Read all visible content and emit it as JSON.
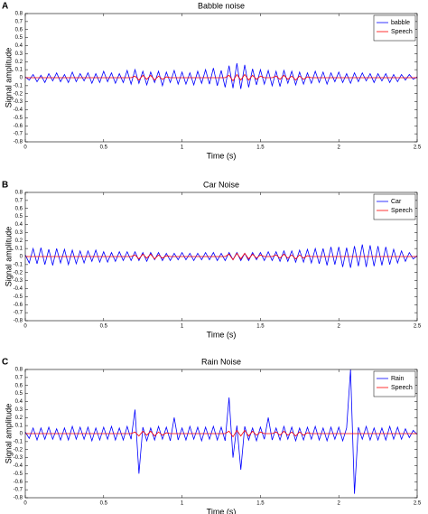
{
  "chart_data": [
    {
      "type": "line",
      "panel_label": "A",
      "title": "Babble noise",
      "xlabel": "Time (s)",
      "ylabel": "Signal amplitude",
      "legend": "upper right",
      "xlim": [
        0,
        2.5
      ],
      "ylim": [
        -0.8,
        0.8
      ],
      "xticks": [
        0,
        0.5,
        1,
        1.5,
        2,
        2.5
      ],
      "yticks": [
        -0.8,
        -0.7,
        -0.6,
        -0.5,
        -0.4,
        -0.3,
        -0.2,
        -0.1,
        0,
        0.1,
        0.2,
        0.3,
        0.4,
        0.5,
        0.6,
        0.7,
        0.8
      ],
      "x": [
        0,
        0.025,
        0.05,
        0.075,
        0.1,
        0.125,
        0.15,
        0.175,
        0.2,
        0.225,
        0.25,
        0.275,
        0.3,
        0.325,
        0.35,
        0.375,
        0.4,
        0.425,
        0.45,
        0.475,
        0.5,
        0.525,
        0.55,
        0.575,
        0.6,
        0.625,
        0.65,
        0.675,
        0.7,
        0.725,
        0.75,
        0.775,
        0.8,
        0.825,
        0.85,
        0.875,
        0.9,
        0.925,
        0.95,
        0.975,
        1,
        1.025,
        1.05,
        1.075,
        1.1,
        1.125,
        1.15,
        1.175,
        1.2,
        1.225,
        1.25,
        1.275,
        1.3,
        1.325,
        1.35,
        1.375,
        1.4,
        1.425,
        1.45,
        1.475,
        1.5,
        1.525,
        1.55,
        1.575,
        1.6,
        1.625,
        1.65,
        1.675,
        1.7,
        1.725,
        1.75,
        1.775,
        1.8,
        1.825,
        1.85,
        1.875,
        1.9,
        1.925,
        1.95,
        1.975,
        2,
        2.025,
        2.05,
        2.075,
        2.1,
        2.125,
        2.15,
        2.175,
        2.2,
        2.225,
        2.25,
        2.275,
        2.3,
        2.325,
        2.35,
        2.375,
        2.4,
        2.425,
        2.45,
        2.475,
        2.5
      ],
      "series": [
        {
          "name": "babble",
          "color": "#0000ff",
          "values": [
            0.01,
            -0.03,
            0.04,
            -0.05,
            0.03,
            -0.06,
            0.05,
            -0.04,
            0.06,
            -0.05,
            0.04,
            -0.06,
            0.07,
            -0.05,
            0.05,
            -0.04,
            0.06,
            -0.07,
            0.05,
            -0.06,
            0.08,
            -0.05,
            0.06,
            -0.07,
            0.05,
            -0.06,
            0.09,
            -0.08,
            0.1,
            -0.07,
            0.08,
            -0.09,
            0.07,
            -0.06,
            0.08,
            -0.1,
            0.07,
            -0.06,
            0.09,
            -0.08,
            0.07,
            -0.08,
            0.06,
            -0.09,
            0.08,
            -0.07,
            0.1,
            -0.08,
            0.12,
            -0.1,
            0.09,
            -0.12,
            0.15,
            -0.13,
            0.18,
            -0.14,
            0.16,
            -0.12,
            0.11,
            -0.09,
            0.1,
            -0.08,
            0.09,
            -0.1,
            0.08,
            -0.11,
            0.09,
            -0.07,
            0.08,
            -0.09,
            0.07,
            -0.08,
            0.06,
            -0.07,
            0.08,
            -0.06,
            0.07,
            -0.08,
            0.06,
            -0.05,
            0.07,
            -0.06,
            0.05,
            -0.07,
            0.06,
            -0.05,
            0.06,
            -0.04,
            0.05,
            -0.06,
            0.05,
            -0.04,
            0.05,
            -0.06,
            0.04,
            -0.05,
            0.04,
            -0.03,
            0.04,
            -0.02,
            0.01
          ]
        },
        {
          "name": "Speech",
          "color": "#ff0000",
          "values": [
            0,
            0,
            0,
            0,
            0,
            0,
            0,
            0,
            0,
            0,
            0,
            0,
            0,
            0,
            0,
            0,
            0,
            0,
            0,
            0,
            0,
            0,
            0,
            0,
            0,
            0,
            0,
            0,
            0.02,
            -0.03,
            0.03,
            -0.02,
            0.03,
            -0.03,
            0.02,
            -0.02,
            0.01,
            0,
            0,
            0,
            0,
            0,
            0,
            0,
            0,
            0,
            0,
            0,
            0,
            0,
            0,
            0,
            0.03,
            -0.04,
            0.04,
            -0.03,
            0.04,
            -0.03,
            0.03,
            -0.02,
            0.02,
            0,
            0,
            0,
            0.02,
            -0.02,
            0.03,
            -0.02,
            0.02,
            -0.03,
            0.02,
            -0.02,
            0.01,
            0,
            0,
            0,
            0,
            0,
            0,
            0,
            0,
            0,
            0,
            0,
            0,
            0,
            0,
            0,
            0,
            0,
            0,
            0,
            0,
            0,
            0,
            0,
            0,
            0,
            0,
            0,
            0
          ]
        }
      ]
    },
    {
      "type": "line",
      "panel_label": "B",
      "title": "Car Noise",
      "xlabel": "Time (s)",
      "ylabel": "Signal amplitude",
      "legend": "upper right",
      "xlim": [
        0,
        2.5
      ],
      "ylim": [
        -0.8,
        0.8
      ],
      "xticks": [
        0,
        0.5,
        1,
        1.5,
        2,
        2.5
      ],
      "yticks": [
        -0.8,
        -0.7,
        -0.6,
        -0.5,
        -0.4,
        -0.3,
        -0.2,
        -0.1,
        0,
        0.1,
        0.2,
        0.3,
        0.4,
        0.5,
        0.6,
        0.7,
        0.8
      ],
      "x": [
        0,
        0.025,
        0.05,
        0.075,
        0.1,
        0.125,
        0.15,
        0.175,
        0.2,
        0.225,
        0.25,
        0.275,
        0.3,
        0.325,
        0.35,
        0.375,
        0.4,
        0.425,
        0.45,
        0.475,
        0.5,
        0.525,
        0.55,
        0.575,
        0.6,
        0.625,
        0.65,
        0.675,
        0.7,
        0.725,
        0.75,
        0.775,
        0.8,
        0.825,
        0.85,
        0.875,
        0.9,
        0.925,
        0.95,
        0.975,
        1,
        1.025,
        1.05,
        1.075,
        1.1,
        1.125,
        1.15,
        1.175,
        1.2,
        1.225,
        1.25,
        1.275,
        1.3,
        1.325,
        1.35,
        1.375,
        1.4,
        1.425,
        1.45,
        1.475,
        1.5,
        1.525,
        1.55,
        1.575,
        1.6,
        1.625,
        1.65,
        1.675,
        1.7,
        1.725,
        1.75,
        1.775,
        1.8,
        1.825,
        1.85,
        1.875,
        1.9,
        1.925,
        1.95,
        1.975,
        2,
        2.025,
        2.05,
        2.075,
        2.1,
        2.125,
        2.15,
        2.175,
        2.2,
        2.225,
        2.25,
        2.275,
        2.3,
        2.325,
        2.35,
        2.375,
        2.4,
        2.425,
        2.45,
        2.475,
        2.5
      ],
      "series": [
        {
          "name": "Car",
          "color": "#0000ff",
          "values": [
            0.02,
            -0.08,
            0.1,
            -0.09,
            0.11,
            -0.1,
            0.09,
            -0.11,
            0.1,
            -0.08,
            0.09,
            -0.1,
            0.08,
            -0.09,
            0.07,
            -0.08,
            0.07,
            -0.06,
            0.08,
            -0.07,
            0.06,
            -0.07,
            0.05,
            -0.06,
            0.06,
            -0.05,
            0.06,
            -0.05,
            0.06,
            -0.05,
            0.05,
            -0.06,
            0.05,
            -0.04,
            0.05,
            -0.05,
            0.04,
            -0.05,
            0.04,
            -0.04,
            0.05,
            -0.04,
            0.04,
            -0.05,
            0.04,
            -0.04,
            0.05,
            -0.04,
            0.05,
            -0.05,
            0.04,
            -0.05,
            0.05,
            -0.04,
            0.05,
            -0.05,
            0.04,
            -0.05,
            0.05,
            -0.04,
            0.05,
            -0.05,
            0.06,
            -0.05,
            0.06,
            -0.06,
            0.07,
            -0.06,
            0.07,
            -0.07,
            0.08,
            -0.07,
            0.09,
            -0.08,
            0.1,
            -0.09,
            0.1,
            -0.11,
            0.12,
            -0.1,
            0.12,
            -0.13,
            0.11,
            -0.14,
            0.13,
            -0.12,
            0.15,
            -0.13,
            0.14,
            -0.12,
            0.13,
            -0.11,
            0.12,
            -0.1,
            0.09,
            -0.08,
            0.07,
            -0.06,
            0.05,
            -0.03,
            0.01
          ]
        },
        {
          "name": "Speech",
          "color": "#ff0000",
          "values": [
            0,
            0,
            0,
            0,
            0,
            0,
            0,
            0,
            0,
            0,
            0,
            0,
            0,
            0,
            0,
            0,
            0,
            0,
            0,
            0,
            0,
            0,
            0,
            0,
            0,
            0,
            0,
            0,
            0.02,
            -0.03,
            0.03,
            -0.02,
            0.03,
            -0.03,
            0.02,
            -0.02,
            0.01,
            0,
            0,
            0,
            0,
            0,
            0,
            0,
            0,
            0,
            0,
            0,
            0,
            0,
            0,
            0,
            0.03,
            -0.04,
            0.04,
            -0.03,
            0.04,
            -0.03,
            0.03,
            -0.02,
            0.02,
            0,
            0,
            0,
            0.02,
            -0.02,
            0.03,
            -0.02,
            0.02,
            -0.03,
            0.02,
            -0.02,
            0.01,
            0,
            0,
            0,
            0,
            0,
            0,
            0,
            0,
            0,
            0,
            0,
            0,
            0,
            0,
            0,
            0,
            0,
            0,
            0,
            0,
            0,
            0,
            0,
            0,
            0,
            0,
            0,
            0
          ]
        }
      ]
    },
    {
      "type": "line",
      "panel_label": "C",
      "title": "Rain Noise",
      "xlabel": "Time (s)",
      "ylabel": "Signal amplitude",
      "legend": "upper right",
      "xlim": [
        0,
        2.5
      ],
      "ylim": [
        -0.8,
        0.8
      ],
      "xticks": [
        0,
        0.5,
        1,
        1.5,
        2,
        2.5
      ],
      "yticks": [
        -0.8,
        -0.7,
        -0.6,
        -0.5,
        -0.4,
        -0.3,
        -0.2,
        -0.1,
        0,
        0.1,
        0.2,
        0.3,
        0.4,
        0.5,
        0.6,
        0.7,
        0.8
      ],
      "x": [
        0,
        0.025,
        0.05,
        0.075,
        0.1,
        0.125,
        0.15,
        0.175,
        0.2,
        0.225,
        0.25,
        0.275,
        0.3,
        0.325,
        0.35,
        0.375,
        0.4,
        0.425,
        0.45,
        0.475,
        0.5,
        0.525,
        0.55,
        0.575,
        0.6,
        0.625,
        0.65,
        0.675,
        0.7,
        0.725,
        0.75,
        0.775,
        0.8,
        0.825,
        0.85,
        0.875,
        0.9,
        0.925,
        0.95,
        0.975,
        1,
        1.025,
        1.05,
        1.075,
        1.1,
        1.125,
        1.15,
        1.175,
        1.2,
        1.225,
        1.25,
        1.275,
        1.3,
        1.325,
        1.35,
        1.375,
        1.4,
        1.425,
        1.45,
        1.475,
        1.5,
        1.525,
        1.55,
        1.575,
        1.6,
        1.625,
        1.65,
        1.675,
        1.7,
        1.725,
        1.75,
        1.775,
        1.8,
        1.825,
        1.85,
        1.875,
        1.9,
        1.925,
        1.95,
        1.975,
        2,
        2.025,
        2.05,
        2.075,
        2.1,
        2.125,
        2.15,
        2.175,
        2.2,
        2.225,
        2.25,
        2.275,
        2.3,
        2.325,
        2.35,
        2.375,
        2.4,
        2.425,
        2.45,
        2.475,
        2.5
      ],
      "series": [
        {
          "name": "Rain",
          "color": "#0000ff",
          "values": [
            0.02,
            -0.06,
            0.07,
            -0.08,
            0.07,
            -0.07,
            0.08,
            -0.07,
            0.06,
            -0.08,
            0.07,
            -0.08,
            0.09,
            -0.07,
            0.08,
            -0.07,
            0.08,
            -0.09,
            0.07,
            -0.08,
            0.08,
            -0.07,
            0.09,
            -0.08,
            0.07,
            -0.08,
            0.09,
            -0.07,
            0.3,
            -0.5,
            0.08,
            -0.09,
            0.07,
            -0.08,
            0.09,
            -0.07,
            0.08,
            -0.09,
            0.2,
            -0.08,
            0.07,
            -0.08,
            0.09,
            -0.07,
            0.08,
            -0.09,
            0.08,
            -0.07,
            0.09,
            -0.08,
            0.08,
            -0.09,
            0.45,
            -0.3,
            0.1,
            -0.45,
            0.09,
            -0.08,
            0.07,
            -0.09,
            0.08,
            -0.07,
            0.2,
            -0.08,
            0.07,
            -0.08,
            0.09,
            -0.07,
            0.08,
            -0.09,
            0.07,
            -0.08,
            0.08,
            -0.07,
            0.09,
            -0.08,
            0.07,
            -0.09,
            0.08,
            -0.07,
            0.08,
            -0.09,
            0.07,
            0.8,
            -0.75,
            0.08,
            -0.07,
            0.09,
            -0.08,
            0.07,
            -0.08,
            0.07,
            -0.08,
            0.09,
            -0.07,
            0.08,
            -0.07,
            0.06,
            -0.05,
            0.04,
            -0.01
          ]
        },
        {
          "name": "Speech",
          "color": "#ff0000",
          "values": [
            0,
            0,
            0,
            0,
            0,
            0,
            0,
            0,
            0,
            0,
            0,
            0,
            0,
            0,
            0,
            0,
            0,
            0,
            0,
            0,
            0,
            0,
            0,
            0,
            0,
            0,
            0,
            0,
            0.02,
            -0.03,
            0.03,
            -0.02,
            0.03,
            -0.03,
            0.02,
            -0.02,
            0.01,
            0,
            0,
            0,
            0,
            0,
            0,
            0,
            0,
            0,
            0,
            0,
            0,
            0,
            0,
            0,
            0.03,
            -0.04,
            0.04,
            -0.03,
            0.04,
            -0.03,
            0.03,
            -0.02,
            0.02,
            0,
            0,
            0,
            0.02,
            -0.02,
            0.03,
            -0.02,
            0.02,
            -0.03,
            0.02,
            -0.02,
            0.01,
            0,
            0,
            0,
            0,
            0,
            0,
            0,
            0,
            0,
            0,
            0,
            0,
            0,
            0,
            0,
            0,
            0,
            0,
            0,
            0,
            0,
            0,
            0,
            0,
            0,
            0,
            0,
            0
          ]
        }
      ]
    }
  ]
}
